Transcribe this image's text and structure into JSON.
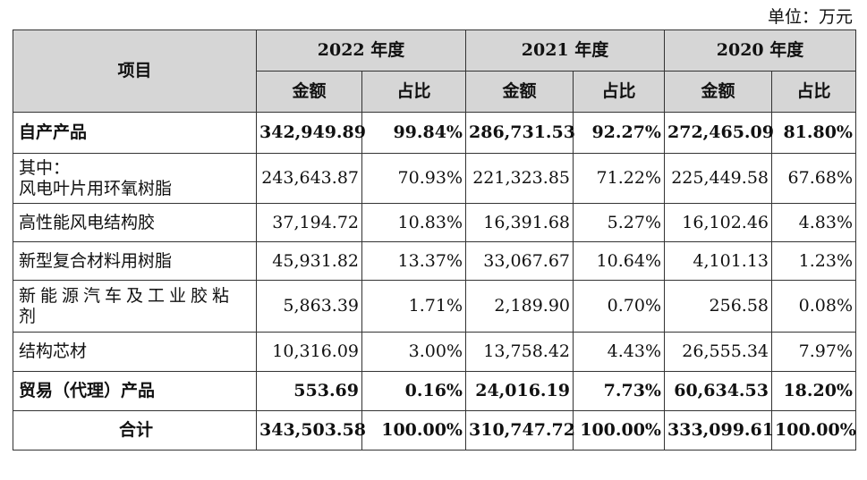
{
  "unit_label": "单位：万元",
  "header": {
    "item": "项目",
    "years": [
      "2022 年度",
      "2021 年度",
      "2020 年度"
    ],
    "amount": "金额",
    "ratio": "占比"
  },
  "rows": [
    {
      "name": "自产产品",
      "bold": true,
      "values": [
        "342,949.89",
        "99.84%",
        "286,731.53",
        "92.27%",
        "272,465.09",
        "81.80%"
      ]
    },
    {
      "name_line1": "其中：",
      "name_line2": "风电叶片用环氧树脂",
      "values": [
        "243,643.87",
        "70.93%",
        "221,323.85",
        "71.22%",
        "225,449.58",
        "67.68%"
      ]
    },
    {
      "name": "高性能风电结构胶",
      "values": [
        "37,194.72",
        "10.83%",
        "16,391.68",
        "5.27%",
        "16,102.46",
        "4.83%"
      ]
    },
    {
      "name": "新型复合材料用树脂",
      "values": [
        "45,931.82",
        "13.37%",
        "33,067.67",
        "10.64%",
        "4,101.13",
        "1.23%"
      ]
    },
    {
      "name": "新能源汽车及工业胶粘剂",
      "values": [
        "5,863.39",
        "1.71%",
        "2,189.90",
        "0.70%",
        "256.58",
        "0.08%"
      ]
    },
    {
      "name": "结构芯材",
      "values": [
        "10,316.09",
        "3.00%",
        "13,758.42",
        "4.43%",
        "26,555.34",
        "7.97%"
      ]
    },
    {
      "name": "贸易（代理）产品",
      "bold": true,
      "values": [
        "553.69",
        "0.16%",
        "24,016.19",
        "7.73%",
        "60,634.53",
        "18.20%"
      ]
    },
    {
      "name": "合计",
      "bold": true,
      "total": true,
      "values": [
        "343,503.58",
        "100.00%",
        "310,747.72",
        "100.00%",
        "333,099.61",
        "100.00%"
      ]
    }
  ]
}
